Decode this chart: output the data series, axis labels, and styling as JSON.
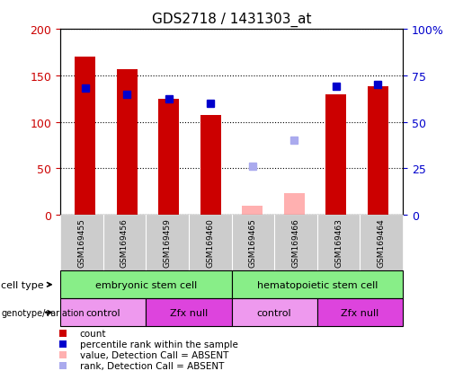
{
  "title": "GDS2718 / 1431303_at",
  "samples": [
    "GSM169455",
    "GSM169456",
    "GSM169459",
    "GSM169460",
    "GSM169465",
    "GSM169466",
    "GSM169463",
    "GSM169464"
  ],
  "count_values": [
    170,
    157,
    125,
    107,
    null,
    null,
    130,
    138
  ],
  "count_absent_values": [
    null,
    null,
    null,
    null,
    10,
    23,
    null,
    null
  ],
  "rank_values": [
    136,
    130,
    125,
    120,
    null,
    null,
    138,
    140
  ],
  "rank_absent_values": [
    null,
    null,
    null,
    null,
    52,
    80,
    null,
    null
  ],
  "ylim_left": [
    0,
    200
  ],
  "ylim_right": [
    0,
    100
  ],
  "yticks_left": [
    0,
    50,
    100,
    150,
    200
  ],
  "yticks_right": [
    0,
    25,
    50,
    75,
    100
  ],
  "yticklabels_right": [
    "0",
    "25",
    "50",
    "75",
    "100%"
  ],
  "bar_color": "#cc0000",
  "bar_absent_color": "#ffb0b0",
  "rank_color": "#0000cc",
  "rank_absent_color": "#aaaaee",
  "cell_type_groups": [
    {
      "label": "embryonic stem cell",
      "start": 0,
      "end": 4,
      "color": "#88ee88"
    },
    {
      "label": "hematopoietic stem cell",
      "start": 4,
      "end": 8,
      "color": "#88ee88"
    }
  ],
  "genotype_groups": [
    {
      "label": "control",
      "start": 0,
      "end": 2,
      "color": "#ee99ee"
    },
    {
      "label": "Zfx null",
      "start": 2,
      "end": 4,
      "color": "#dd44dd"
    },
    {
      "label": "control",
      "start": 4,
      "end": 6,
      "color": "#ee99ee"
    },
    {
      "label": "Zfx null",
      "start": 6,
      "end": 8,
      "color": "#dd44dd"
    }
  ],
  "legend_items": [
    {
      "label": "count",
      "color": "#cc0000"
    },
    {
      "label": "percentile rank within the sample",
      "color": "#0000cc"
    },
    {
      "label": "value, Detection Call = ABSENT",
      "color": "#ffb0b0"
    },
    {
      "label": "rank, Detection Call = ABSENT",
      "color": "#aaaaee"
    }
  ],
  "cell_type_label": "cell type",
  "genotype_label": "genotype/variation",
  "bar_width": 0.5,
  "bg_color": "#ffffff",
  "tick_color_left": "#cc0000",
  "tick_color_right": "#0000cc",
  "sample_bg_color": "#cccccc"
}
